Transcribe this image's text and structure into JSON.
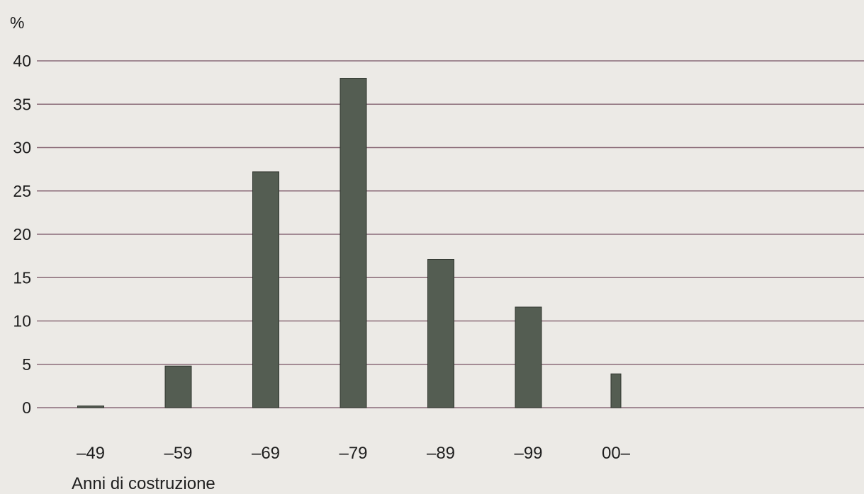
{
  "chart_data": {
    "type": "bar",
    "categories": [
      "–49",
      "–59",
      "–69",
      "–79",
      "–89",
      "–99",
      "00–"
    ],
    "values": [
      0.2,
      4.8,
      27.2,
      38.0,
      17.1,
      11.6,
      3.9
    ],
    "xlabel": "Anni di costruzione",
    "ylabel": "%",
    "ylim": [
      0,
      40
    ],
    "yticks": [
      0,
      5,
      10,
      15,
      20,
      25,
      30,
      35,
      40
    ],
    "grid": true,
    "legend": "none"
  },
  "colors": {
    "bar": "#545d52",
    "bar_stroke": "#2f352e",
    "grid": "#8a6b78",
    "background": "#eceae6"
  }
}
